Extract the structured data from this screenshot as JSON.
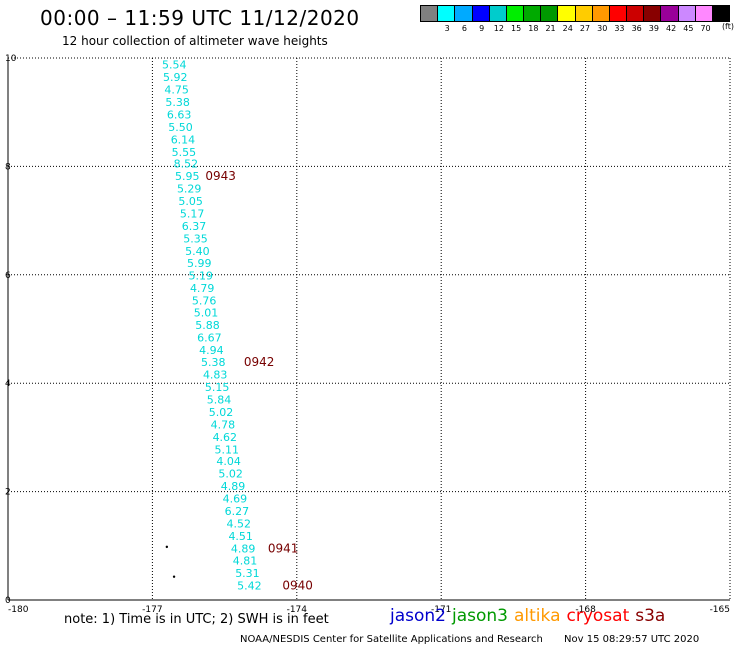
{
  "header": {
    "title": "00:00 – 11:59 UTC 11/12/2020",
    "subtitle": "12 hour collection of altimeter wave heights"
  },
  "legend": {
    "colors": [
      "#808080",
      "#00ffff",
      "#00aaff",
      "#0000ff",
      "#00cccc",
      "#00ee00",
      "#00aa00",
      "#009900",
      "#ffff00",
      "#ffcc00",
      "#ff9900",
      "#ff0000",
      "#cc0000",
      "#880000",
      "#990099",
      "#cc88ff",
      "#ff88ff",
      "#000000"
    ],
    "labels": [
      "3",
      "6",
      "9",
      "12",
      "15",
      "18",
      "21",
      "24",
      "27",
      "30",
      "33",
      "36",
      "39",
      "42",
      "45",
      "70"
    ],
    "unit": "(ft)"
  },
  "chart_data": {
    "type": "scatter",
    "xlim": [
      -180,
      -165
    ],
    "ylim": [
      0,
      10
    ],
    "x_ticks": [
      "-180",
      "-177",
      "-174",
      "-171",
      "-168",
      "-165"
    ],
    "y_ticks": [
      "0",
      "2",
      "4",
      "6",
      "8",
      "10"
    ],
    "grid": true,
    "points": [
      {
        "x": -176.8,
        "y": 9.88,
        "label": "5.54"
      },
      {
        "x": -176.78,
        "y": 9.65,
        "label": "5.92"
      },
      {
        "x": -176.75,
        "y": 9.42,
        "label": "4.75"
      },
      {
        "x": -176.73,
        "y": 9.19,
        "label": "5.38"
      },
      {
        "x": -176.7,
        "y": 8.96,
        "label": "6.63"
      },
      {
        "x": -176.67,
        "y": 8.73,
        "label": "5.50"
      },
      {
        "x": -176.62,
        "y": 8.5,
        "label": "6.14"
      },
      {
        "x": -176.6,
        "y": 8.27,
        "label": "5.55"
      },
      {
        "x": -176.56,
        "y": 8.05,
        "label": "8.52"
      },
      {
        "x": -176.53,
        "y": 7.82,
        "label": "5.95"
      },
      {
        "x": -176.49,
        "y": 7.59,
        "label": "5.29"
      },
      {
        "x": -176.46,
        "y": 7.36,
        "label": "5.05"
      },
      {
        "x": -176.43,
        "y": 7.13,
        "label": "5.17"
      },
      {
        "x": -176.39,
        "y": 6.9,
        "label": "6.37"
      },
      {
        "x": -176.36,
        "y": 6.67,
        "label": "5.35"
      },
      {
        "x": -176.32,
        "y": 6.44,
        "label": "5.40"
      },
      {
        "x": -176.28,
        "y": 6.22,
        "label": "5.99"
      },
      {
        "x": -176.25,
        "y": 5.99,
        "label": "5.19"
      },
      {
        "x": -176.22,
        "y": 5.76,
        "label": "4.79"
      },
      {
        "x": -176.18,
        "y": 5.53,
        "label": "5.76"
      },
      {
        "x": -176.14,
        "y": 5.3,
        "label": "5.01"
      },
      {
        "x": -176.11,
        "y": 5.07,
        "label": "5.88"
      },
      {
        "x": -176.07,
        "y": 4.84,
        "label": "6.67"
      },
      {
        "x": -176.03,
        "y": 4.61,
        "label": "4.94"
      },
      {
        "x": -175.99,
        "y": 4.39,
        "label": "5.38"
      },
      {
        "x": -175.95,
        "y": 4.16,
        "label": "4.83"
      },
      {
        "x": -175.91,
        "y": 3.93,
        "label": "5.15"
      },
      {
        "x": -175.87,
        "y": 3.7,
        "label": "5.84"
      },
      {
        "x": -175.83,
        "y": 3.47,
        "label": "5.02"
      },
      {
        "x": -175.79,
        "y": 3.24,
        "label": "4.78"
      },
      {
        "x": -175.75,
        "y": 3.01,
        "label": "4.62"
      },
      {
        "x": -175.71,
        "y": 2.78,
        "label": "5.11"
      },
      {
        "x": -175.67,
        "y": 2.56,
        "label": "4.04"
      },
      {
        "x": -175.63,
        "y": 2.33,
        "label": "5.02"
      },
      {
        "x": -175.58,
        "y": 2.1,
        "label": "4.89"
      },
      {
        "x": -175.54,
        "y": 1.87,
        "label": "4.69"
      },
      {
        "x": -175.5,
        "y": 1.64,
        "label": "6.27"
      },
      {
        "x": -175.46,
        "y": 1.41,
        "label": "4.52"
      },
      {
        "x": -175.42,
        "y": 1.18,
        "label": "4.51"
      },
      {
        "x": -175.37,
        "y": 0.95,
        "label": "4.89"
      },
      {
        "x": -175.33,
        "y": 0.73,
        "label": "4.81"
      },
      {
        "x": -175.28,
        "y": 0.5,
        "label": "5.31"
      },
      {
        "x": -175.24,
        "y": 0.27,
        "label": "5.42"
      }
    ],
    "time_labels": [
      {
        "x": -175.9,
        "y": 7.82,
        "text": "0943"
      },
      {
        "x": -175.1,
        "y": 4.39,
        "text": "0942"
      },
      {
        "x": -174.6,
        "y": 0.95,
        "text": "0941"
      },
      {
        "x": -174.3,
        "y": 0.27,
        "text": "0940"
      }
    ],
    "dots": [
      {
        "x": -176.7,
        "y": 0.98
      },
      {
        "x": -176.55,
        "y": 0.43
      }
    ]
  },
  "note": "note:  1) Time is in UTC;  2) SWH is in feet",
  "satellites": [
    {
      "name": "jason2",
      "color": "#0000cc"
    },
    {
      "name": "jason3",
      "color": "#009900"
    },
    {
      "name": "altika",
      "color": "#ff9900"
    },
    {
      "name": "cryosat",
      "color": "#ff0000"
    },
    {
      "name": "s3a",
      "color": "#880000"
    }
  ],
  "footer": {
    "credit": "NOAA/NESDIS Center for Satellite Applications and Research",
    "timestamp": "Nov 15 08:29:57 UTC 2020"
  }
}
